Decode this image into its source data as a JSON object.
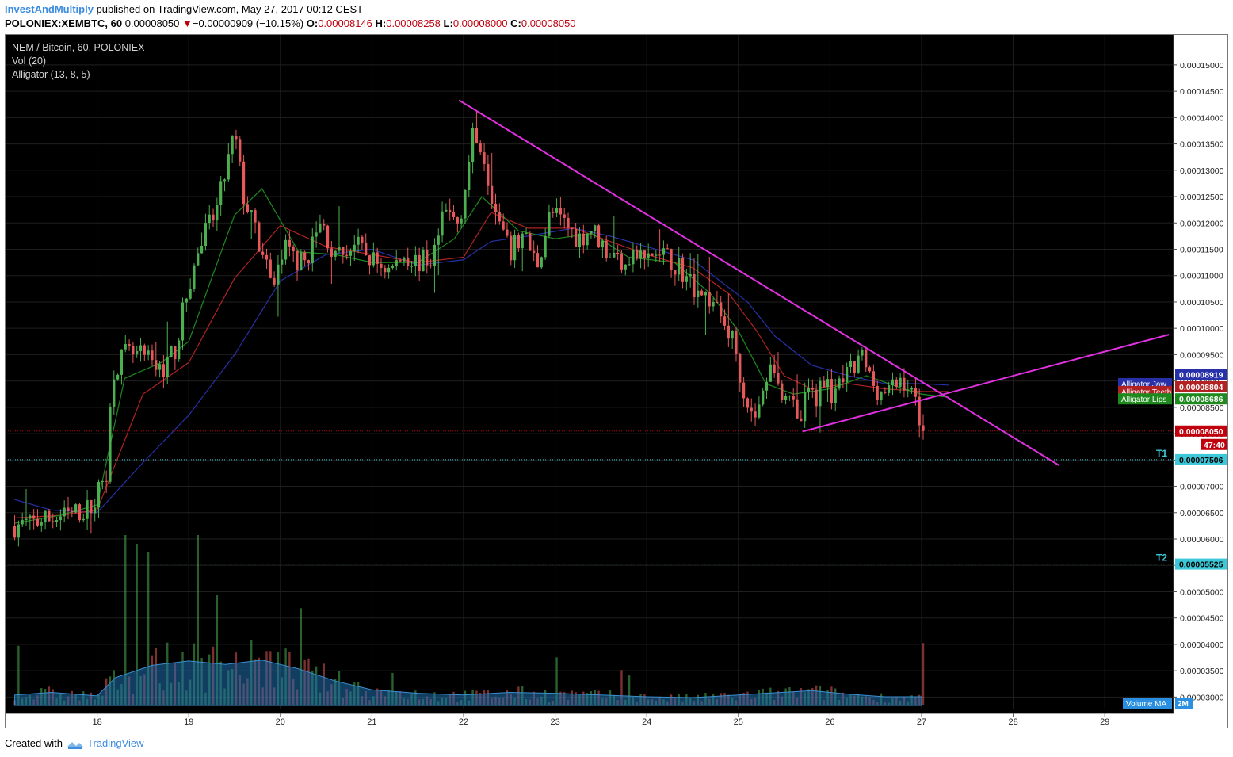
{
  "header": {
    "author": "InvestAndMultiply",
    "published": "published on TradingView.com, May 27, 2017 00:12 CEST"
  },
  "ohlc": {
    "symbol": "POLONIEX:XEMBTC, 60",
    "last": "0.00008050",
    "change": "−0.00000909 (−10.15%)",
    "o_label": "O:",
    "o": "0.00008146",
    "h_label": "H:",
    "h": "0.00008258",
    "l_label": "L:",
    "l": "0.00008000",
    "c_label": "C:",
    "c": "0.00008050"
  },
  "legend": {
    "title": "NEM / Bitcoin, 60, POLONIEX",
    "vol": "Vol (20)",
    "alligator": "Alligator (13, 8, 5)"
  },
  "footer": {
    "created_with": "Created with",
    "brand": "TradingView"
  },
  "colors": {
    "background": "#000000",
    "up": "#4caf50",
    "down": "#e6585a",
    "jaw": "#2730a8",
    "teeth": "#b22222",
    "lips": "#1e8a1e",
    "trendline": "#e030e0",
    "target": "#3cc8d8",
    "last_price": "#c0000d"
  },
  "chart_data": {
    "type": "candlestick",
    "title": "NEM / Bitcoin, 60, POLONIEX",
    "x_start_day": 17.1,
    "x_step_days": 0.04167,
    "x_tick_labels": [
      "18",
      "19",
      "20",
      "21",
      "22",
      "23",
      "24",
      "25",
      "26",
      "27",
      "28",
      "29"
    ],
    "x_tick_days": [
      18,
      19,
      20,
      21,
      22,
      23,
      24,
      25,
      26,
      27,
      28,
      29
    ],
    "y_tick_values": [
      3e-05,
      3.5e-05,
      4e-05,
      4.5e-05,
      5e-05,
      5.5e-05,
      6e-05,
      6.5e-05,
      7e-05,
      7.5e-05,
      8e-05,
      8.5e-05,
      9e-05,
      9.5e-05,
      0.0001,
      0.000105,
      0.00011,
      0.000115,
      0.00012,
      0.000125,
      0.00013,
      0.000135,
      0.00014,
      0.000145,
      0.00015
    ],
    "y_tick_labels": [
      "0.00003000",
      "0.00003500",
      "0.00004000",
      "0.00004500",
      "0.00005000",
      "0.00005500",
      "0.00006000",
      "0.00006500",
      "0.00007000",
      "0.00007500",
      "0.00008000",
      "0.00008500",
      "0.00009000",
      "0.00009500",
      "0.00010000",
      "0.00010500",
      "0.00011000",
      "0.00011500",
      "0.00012000",
      "0.00012500",
      "0.00013000",
      "0.00013500",
      "0.00014000",
      "0.00014500",
      "0.00015000"
    ],
    "ylim": [
      2.78e-05,
      0.0001557
    ],
    "close_anchors": [
      [
        17.1,
        6.25e-05
      ],
      [
        17.4,
        6.35e-05
      ],
      [
        17.7,
        6.45e-05
      ],
      [
        17.95,
        6.6e-05
      ],
      [
        18.1,
        7.3e-05
      ],
      [
        18.17,
        9.2e-05
      ],
      [
        18.3,
        9.5e-05
      ],
      [
        18.5,
        9.45e-05
      ],
      [
        18.7,
        9.2e-05
      ],
      [
        18.85,
        9.6e-05
      ],
      [
        19.0,
        0.000108
      ],
      [
        19.15,
        0.000117
      ],
      [
        19.3,
        0.000122
      ],
      [
        19.5,
        0.000137
      ],
      [
        19.6,
        0.000125
      ],
      [
        19.75,
        0.000117
      ],
      [
        19.9,
        0.000108
      ],
      [
        20.05,
        0.000115
      ],
      [
        20.25,
        0.000112
      ],
      [
        20.45,
        0.00012
      ],
      [
        20.6,
        0.000113
      ],
      [
        20.8,
        0.000116
      ],
      [
        21.0,
        0.000113
      ],
      [
        21.2,
        0.000111
      ],
      [
        21.35,
        0.000114
      ],
      [
        21.5,
        0.0001125
      ],
      [
        21.65,
        0.000113
      ],
      [
        21.8,
        0.000122
      ],
      [
        21.95,
        0.00012
      ],
      [
        22.1,
        0.000136
      ],
      [
        22.2,
        0.000135
      ],
      [
        22.35,
        0.000122
      ],
      [
        22.5,
        0.000114
      ],
      [
        22.65,
        0.000118
      ],
      [
        22.8,
        0.000112
      ],
      [
        22.95,
        0.000122
      ],
      [
        23.1,
        0.00012
      ],
      [
        23.25,
        0.000117
      ],
      [
        23.4,
        0.000119
      ],
      [
        23.55,
        0.000115
      ],
      [
        23.7,
        0.000113
      ],
      [
        23.85,
        0.000114
      ],
      [
        24.0,
        0.000113
      ],
      [
        24.1,
        0.000114
      ],
      [
        24.2,
        0.0001135
      ],
      [
        24.35,
        0.000112
      ],
      [
        24.45,
        0.000109
      ],
      [
        24.6,
        0.000107
      ],
      [
        24.75,
        0.000104
      ],
      [
        24.85,
        0.000101
      ],
      [
        24.95,
        9.75e-05
      ],
      [
        25.05,
        8.9e-05
      ],
      [
        25.15,
        8.3e-05
      ],
      [
        25.25,
        8.55e-05
      ],
      [
        25.35,
        9.5e-05
      ],
      [
        25.45,
        8.8e-05
      ],
      [
        25.55,
        8.9e-05
      ],
      [
        25.65,
        8.05e-05
      ],
      [
        25.75,
        8.8e-05
      ],
      [
        25.85,
        8.7e-05
      ],
      [
        25.95,
        9.15e-05
      ],
      [
        26.05,
        8.6e-05
      ],
      [
        26.15,
        9.05e-05
      ],
      [
        26.25,
        9.2e-05
      ],
      [
        26.35,
        9.45e-05
      ],
      [
        26.45,
        9e-05
      ],
      [
        26.55,
        8.8e-05
      ],
      [
        26.65,
        8.8e-05
      ],
      [
        26.8,
        9.05e-05
      ],
      [
        26.9,
        8.7e-05
      ],
      [
        26.96,
        8.55e-05
      ],
      [
        27.0,
        8.05e-05
      ]
    ],
    "series": [
      {
        "name": "Alligator:Jaw",
        "color": "#2730a8",
        "last": "0.00008919",
        "points": [
          [
            17.1,
            6.75e-05
          ],
          [
            17.5,
            6.55e-05
          ],
          [
            18.0,
            6.5e-05
          ],
          [
            18.5,
            7.45e-05
          ],
          [
            19.0,
            8.35e-05
          ],
          [
            19.5,
            9.5e-05
          ],
          [
            20.0,
            0.000109
          ],
          [
            20.5,
            0.000114
          ],
          [
            21.0,
            0.000115
          ],
          [
            21.5,
            0.000112
          ],
          [
            22.0,
            0.000113
          ],
          [
            22.3,
            0.0001165
          ],
          [
            22.7,
            0.0001175
          ],
          [
            23.2,
            0.000119
          ],
          [
            23.6,
            0.0001175
          ],
          [
            24.0,
            0.0001155
          ],
          [
            24.5,
            0.000113
          ],
          [
            24.8,
            0.000109
          ],
          [
            25.1,
            0.000105
          ],
          [
            25.4,
            9.85e-05
          ],
          [
            25.8,
            9.3e-05
          ],
          [
            26.2,
            9.1e-05
          ],
          [
            26.6,
            8.95e-05
          ],
          [
            27.0,
            8.95e-05
          ],
          [
            27.3,
            8.92e-05
          ]
        ]
      },
      {
        "name": "Alligator:Teeth",
        "color": "#b22222",
        "last": "0.00008804",
        "points": [
          [
            17.1,
            6.4e-05
          ],
          [
            17.6,
            6.45e-05
          ],
          [
            18.0,
            6.55e-05
          ],
          [
            18.5,
            8.75e-05
          ],
          [
            19.0,
            9.35e-05
          ],
          [
            19.5,
            0.0001095
          ],
          [
            20.0,
            0.0001195
          ],
          [
            20.5,
            0.0001155
          ],
          [
            21.0,
            0.000114
          ],
          [
            21.5,
            0.0001125
          ],
          [
            22.0,
            0.0001135
          ],
          [
            22.3,
            0.000122
          ],
          [
            22.7,
            0.000119
          ],
          [
            23.2,
            0.000119
          ],
          [
            23.6,
            0.0001165
          ],
          [
            24.0,
            0.000114
          ],
          [
            24.5,
            0.0001115
          ],
          [
            24.9,
            0.0001065
          ],
          [
            25.2,
            9.95e-05
          ],
          [
            25.5,
            9.1e-05
          ],
          [
            25.8,
            8.85e-05
          ],
          [
            26.2,
            8.95e-05
          ],
          [
            26.6,
            8.85e-05
          ],
          [
            27.0,
            8.8e-05
          ],
          [
            27.3,
            8.8e-05
          ]
        ]
      },
      {
        "name": "Alligator:Lips",
        "color": "#1e8a1e",
        "last": "0.00008686",
        "points": [
          [
            17.1,
            6.3e-05
          ],
          [
            17.6,
            6.45e-05
          ],
          [
            18.0,
            6.65e-05
          ],
          [
            18.3,
            9.05e-05
          ],
          [
            18.7,
            9.35e-05
          ],
          [
            19.0,
            9.75e-05
          ],
          [
            19.5,
            0.0001215
          ],
          [
            19.8,
            0.0001265
          ],
          [
            20.2,
            0.0001145
          ],
          [
            20.6,
            0.000114
          ],
          [
            21.0,
            0.0001125
          ],
          [
            21.5,
            0.0001125
          ],
          [
            21.9,
            0.000117
          ],
          [
            22.2,
            0.000125
          ],
          [
            22.6,
            0.0001185
          ],
          [
            23.0,
            0.000117
          ],
          [
            23.4,
            0.000118
          ],
          [
            23.8,
            0.0001135
          ],
          [
            24.3,
            0.0001125
          ],
          [
            24.7,
            0.0001065
          ],
          [
            25.0,
            9.95e-05
          ],
          [
            25.3,
            8.95e-05
          ],
          [
            25.6,
            8.75e-05
          ],
          [
            26.0,
            8.85e-05
          ],
          [
            26.4,
            9.1e-05
          ],
          [
            26.8,
            8.85e-05
          ],
          [
            27.0,
            8.75e-05
          ],
          [
            27.3,
            8.69e-05
          ]
        ]
      }
    ],
    "volume": {
      "name": "Volume MA",
      "ma_label": "2M",
      "ma_points": [
        [
          17.1,
          0.6
        ],
        [
          17.5,
          0.75
        ],
        [
          18.0,
          0.55
        ],
        [
          18.2,
          1.6
        ],
        [
          18.6,
          2.3
        ],
        [
          19.0,
          2.55
        ],
        [
          19.4,
          2.35
        ],
        [
          19.8,
          2.6
        ],
        [
          20.2,
          2.1
        ],
        [
          20.6,
          1.4
        ],
        [
          21.0,
          0.9
        ],
        [
          21.5,
          0.7
        ],
        [
          22.0,
          0.6
        ],
        [
          22.5,
          0.75
        ],
        [
          23.0,
          0.7
        ],
        [
          23.5,
          0.6
        ],
        [
          24.0,
          0.5
        ],
        [
          24.5,
          0.45
        ],
        [
          25.0,
          0.6
        ],
        [
          25.3,
          0.7
        ],
        [
          25.8,
          0.85
        ],
        [
          26.2,
          0.65
        ],
        [
          26.6,
          0.5
        ],
        [
          27.0,
          0.5
        ]
      ]
    },
    "trendlines": [
      {
        "name": "descending-trendline",
        "from": [
          21.95,
          0.0001433
        ],
        "to": [
          28.5,
          7.4e-05
        ]
      },
      {
        "name": "ascending-trendline",
        "from": [
          25.7,
          8.04e-05
        ],
        "to": [
          29.7,
          9.88e-05
        ]
      }
    ],
    "horizontal_lines": [
      {
        "name": "T1",
        "label": "T1",
        "value": 7.506e-05,
        "value_label": "0.00007506"
      },
      {
        "name": "T2",
        "label": "T2",
        "value": 5.525e-05,
        "value_label": "0.00005525"
      },
      {
        "name": "last-price",
        "value": 8.05e-05,
        "value_label": "0.00008050",
        "countdown": "47:40"
      }
    ]
  }
}
